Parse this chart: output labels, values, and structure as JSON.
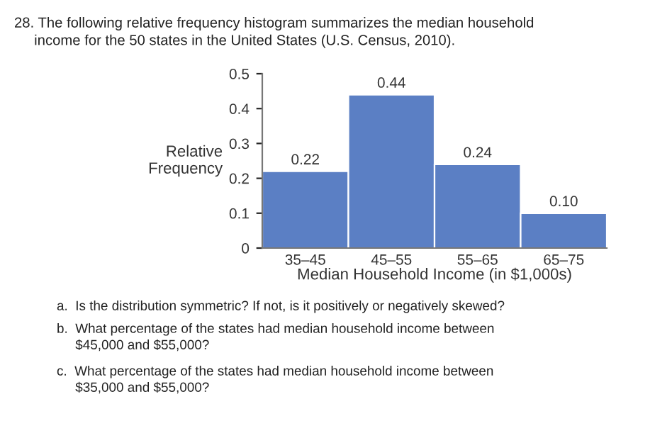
{
  "chart_data": {
    "type": "bar",
    "title": "28. The following relative frequency histogram summarizes the median household\n     income for the 50 states in the United States (U.S. Census, 2010).",
    "categories": [
      "35–45",
      "45–55",
      "55–65",
      "65–75"
    ],
    "values": [
      0.22,
      0.44,
      0.24,
      0.1
    ],
    "color": "#5b7fc4",
    "value_labels": [
      "0.22",
      "0.44",
      "0.24",
      "0.10"
    ],
    "ylim": [
      0,
      0.5
    ],
    "yticks": [
      0,
      0.1,
      0.2,
      0.3,
      0.4,
      0.5
    ],
    "xlabel": "Median Household Income (in $1,000s)",
    "ylabel": "Relative\nFrequency",
    "grid": false,
    "annotations": [
      "a.  Is the distribution symmetric? If not, is it positively or negatively skewed?",
      "b.  What percentage of the states had median household income between\n     $45,000 and $55,000?",
      "c.  What percentage of the states had median household income between\n     $35,000 and $55,000?"
    ]
  }
}
